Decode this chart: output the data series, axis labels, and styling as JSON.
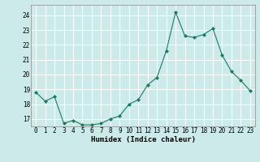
{
  "x": [
    0,
    1,
    2,
    3,
    4,
    5,
    6,
    7,
    8,
    9,
    10,
    11,
    12,
    13,
    14,
    15,
    16,
    17,
    18,
    19,
    20,
    21,
    22,
    23
  ],
  "y": [
    18.8,
    18.2,
    18.5,
    16.7,
    16.9,
    16.6,
    16.6,
    16.7,
    17.0,
    17.2,
    18.0,
    18.3,
    19.3,
    19.8,
    21.6,
    24.2,
    22.6,
    22.5,
    22.7,
    23.1,
    21.3,
    20.2,
    19.6,
    18.9
  ],
  "line_color": "#1a7a5e",
  "marker": "D",
  "marker_size": 2.0,
  "bg_color": "#cceaea",
  "grid_color": "#ffffff",
  "grid_minor_color": "#e8f8f8",
  "xlabel": "Humidex (Indice chaleur)",
  "ylabel_ticks": [
    17,
    18,
    19,
    20,
    21,
    22,
    23,
    24
  ],
  "xlim": [
    -0.5,
    23.5
  ],
  "ylim": [
    16.5,
    24.7
  ],
  "tick_fontsize": 5.5,
  "xlabel_fontsize": 6.5
}
